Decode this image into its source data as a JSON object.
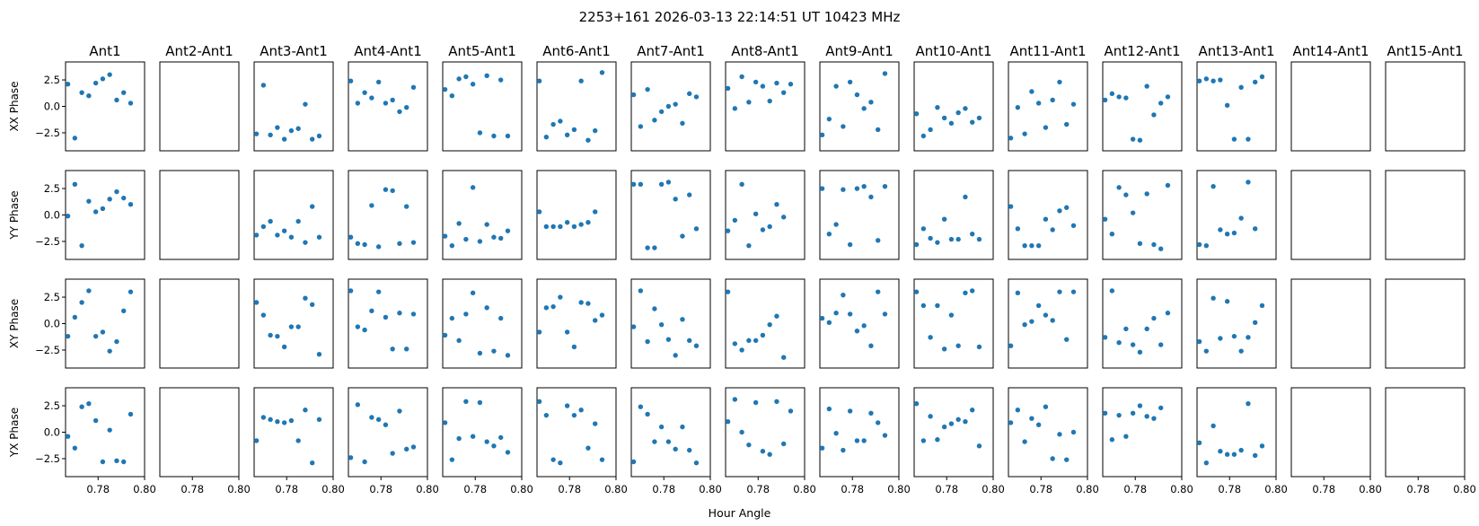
{
  "chart_data": {
    "type": "scatter",
    "title": "2253+161  2026-03-13 22:14:51 UT  10423 MHz",
    "xlabel": "Hour Angle",
    "columns": [
      "Ant1",
      "Ant2-Ant1",
      "Ant3-Ant1",
      "Ant4-Ant1",
      "Ant5-Ant1",
      "Ant6-Ant1",
      "Ant7-Ant1",
      "Ant8-Ant1",
      "Ant9-Ant1",
      "Ant10-Ant1",
      "Ant11-Ant1",
      "Ant12-Ant1",
      "Ant13-Ant1",
      "Ant14-Ant1",
      "Ant15-Ant1"
    ],
    "rows": [
      "XX Phase",
      "YY Phase",
      "XY Phase",
      "YX Phase"
    ],
    "xlim": [
      0.766,
      0.8
    ],
    "ylim": [
      -4.2,
      4.2
    ],
    "x_ticks": [
      0.78,
      0.8
    ],
    "x_tick_labels": [
      "0.78",
      "0.80"
    ],
    "y_ticks": [
      2.5,
      0.0,
      -2.5
    ],
    "y_tick_labels": [
      "2.5",
      "0.0",
      "−2.5"
    ],
    "marker_color": "#1f77b4",
    "x": [
      0.767,
      0.77,
      0.773,
      0.776,
      0.779,
      0.782,
      0.785,
      0.788,
      0.791,
      0.794,
      0.797
    ],
    "panels": [
      [
        [
          2.1,
          -3.0,
          1.3,
          1.0,
          2.2,
          2.6,
          3.0,
          0.6,
          1.3,
          0.3,
          null
        ],
        null,
        [
          -2.6,
          2.0,
          -2.7,
          -2.0,
          -3.1,
          -2.3,
          -2.1,
          0.2,
          -3.1,
          -2.8,
          null
        ],
        [
          2.4,
          0.3,
          1.3,
          0.8,
          2.3,
          0.3,
          0.6,
          -0.5,
          -0.1,
          1.8,
          null
        ],
        [
          1.6,
          1.0,
          2.6,
          2.8,
          2.1,
          -2.5,
          2.9,
          -2.8,
          2.5,
          -2.8,
          null
        ],
        [
          2.4,
          -2.9,
          -1.7,
          -1.4,
          -2.7,
          -2.2,
          2.4,
          -3.2,
          -2.3,
          3.2,
          null
        ],
        [
          1.1,
          -1.9,
          1.6,
          -1.3,
          -0.5,
          0.0,
          0.2,
          -1.6,
          1.2,
          0.9,
          null
        ],
        [
          1.7,
          -0.2,
          2.8,
          0.4,
          2.3,
          1.9,
          0.5,
          2.2,
          1.3,
          2.1,
          null
        ],
        [
          -2.7,
          -1.2,
          1.9,
          -1.9,
          2.3,
          1.1,
          -0.2,
          0.4,
          -2.2,
          3.1,
          null
        ],
        [
          -0.7,
          -2.8,
          -2.2,
          -0.1,
          -1.1,
          -1.6,
          -0.6,
          -0.2,
          -1.5,
          -1.1,
          null
        ],
        [
          -3.0,
          -0.1,
          -2.6,
          1.4,
          0.3,
          -2.0,
          0.6,
          2.3,
          -1.7,
          0.2,
          null
        ],
        [
          0.6,
          1.2,
          0.9,
          0.8,
          -3.1,
          -3.2,
          1.9,
          -0.8,
          0.3,
          0.9,
          null
        ],
        [
          2.4,
          2.6,
          2.4,
          2.5,
          0.1,
          -3.1,
          1.8,
          -3.1,
          2.3,
          2.8,
          null
        ],
        null,
        null
      ],
      [
        [
          -0.1,
          2.9,
          -2.9,
          1.3,
          0.3,
          0.6,
          1.5,
          2.2,
          1.6,
          1.0,
          null
        ],
        null,
        [
          -1.9,
          -1.1,
          -0.6,
          -1.9,
          -1.5,
          -2.1,
          -0.6,
          -2.6,
          0.8,
          -2.1,
          null
        ],
        [
          -2.1,
          -2.7,
          -2.8,
          0.9,
          -3.0,
          2.4,
          2.3,
          -2.7,
          0.8,
          -2.6,
          null
        ],
        [
          -2.0,
          -2.9,
          -0.8,
          -2.3,
          2.6,
          -2.5,
          -0.9,
          -2.1,
          -2.2,
          -1.5,
          null
        ],
        [
          0.3,
          -1.1,
          -1.1,
          -1.1,
          -0.7,
          -1.1,
          -0.9,
          -0.7,
          0.3,
          null,
          null
        ],
        [
          2.9,
          2.9,
          -3.1,
          -3.1,
          2.9,
          3.1,
          1.5,
          -2.0,
          1.9,
          -1.3,
          null
        ],
        [
          -1.5,
          -0.5,
          2.9,
          -2.9,
          0.1,
          -1.4,
          -1.1,
          1.0,
          -0.2,
          null,
          null
        ],
        [
          2.5,
          -1.8,
          -0.9,
          2.4,
          -2.8,
          2.5,
          2.7,
          1.7,
          -2.4,
          2.7,
          null
        ],
        [
          -2.8,
          -1.3,
          -2.2,
          -2.6,
          -0.4,
          -2.3,
          -2.3,
          1.7,
          -1.8,
          -2.3,
          null
        ],
        [
          0.8,
          -1.3,
          -2.9,
          -2.9,
          -2.9,
          -0.4,
          -1.4,
          0.4,
          0.7,
          -1.0,
          null
        ],
        [
          -0.4,
          -1.8,
          2.6,
          1.9,
          0.2,
          -2.7,
          2.0,
          -2.8,
          -3.2,
          2.8,
          null
        ],
        [
          -2.8,
          -2.9,
          2.7,
          -1.4,
          -1.8,
          -1.7,
          -0.3,
          3.1,
          -1.3,
          null,
          null
        ],
        null,
        null
      ],
      [
        [
          -1.2,
          0.6,
          2.0,
          3.1,
          -1.2,
          -0.8,
          -2.6,
          -1.7,
          1.2,
          3.0,
          null
        ],
        null,
        [
          2.0,
          0.8,
          -1.1,
          -1.2,
          -2.2,
          -0.3,
          -0.3,
          2.4,
          1.8,
          -2.9,
          null
        ],
        [
          3.1,
          -0.3,
          -0.6,
          1.2,
          3.0,
          0.6,
          -2.4,
          1.0,
          -2.4,
          0.9,
          null
        ],
        [
          -1.1,
          0.5,
          -1.6,
          0.9,
          2.9,
          -2.8,
          1.5,
          -2.6,
          0.5,
          -3.0,
          null
        ],
        [
          -0.8,
          1.5,
          1.6,
          2.5,
          -0.8,
          -2.2,
          2.0,
          1.9,
          0.3,
          0.8,
          null
        ],
        [
          -0.3,
          3.1,
          -1.7,
          1.4,
          -0.1,
          -1.5,
          -3.0,
          0.4,
          -1.6,
          -2.1,
          null
        ],
        [
          3.0,
          -1.9,
          -2.5,
          -1.6,
          -1.6,
          -1.1,
          -0.1,
          0.7,
          -3.2,
          null,
          null
        ],
        [
          0.5,
          0.1,
          1.0,
          2.7,
          0.9,
          -0.7,
          -0.2,
          -2.1,
          3.0,
          0.9,
          null
        ],
        [
          3.0,
          1.7,
          -1.3,
          1.7,
          -2.4,
          0.8,
          -2.1,
          2.9,
          3.1,
          -2.2,
          null
        ],
        [
          -2.1,
          2.9,
          -0.1,
          0.2,
          1.7,
          0.8,
          0.3,
          3.0,
          -1.5,
          3.0,
          null
        ],
        [
          -1.3,
          3.1,
          -1.8,
          -0.5,
          -2.0,
          -2.7,
          -0.5,
          0.5,
          -2.0,
          1.0,
          null
        ],
        [
          -1.7,
          -2.6,
          2.4,
          -1.4,
          2.1,
          -1.2,
          -2.6,
          -1.3,
          0.1,
          1.7,
          null
        ],
        null,
        null
      ],
      [
        [
          -0.4,
          -1.5,
          2.4,
          2.7,
          1.1,
          -2.8,
          0.2,
          -2.7,
          -2.8,
          1.7,
          null
        ],
        null,
        [
          -0.8,
          1.4,
          1.2,
          1.0,
          0.9,
          1.1,
          -0.8,
          2.1,
          -2.9,
          1.2,
          null
        ],
        [
          -2.4,
          2.6,
          -2.8,
          1.4,
          1.2,
          0.7,
          -2.0,
          2.0,
          -1.6,
          -1.4,
          null
        ],
        [
          0.9,
          -2.6,
          -0.6,
          2.9,
          -0.4,
          2.8,
          -0.9,
          -1.3,
          -0.5,
          -1.9,
          null
        ],
        [
          2.9,
          1.6,
          -2.6,
          -2.9,
          2.5,
          1.6,
          2.1,
          -1.5,
          0.8,
          -2.6,
          null
        ],
        [
          -2.8,
          2.4,
          1.7,
          -0.9,
          0.5,
          -0.9,
          -1.6,
          0.5,
          -1.7,
          -2.9,
          null
        ],
        [
          1.0,
          3.1,
          0.0,
          -1.2,
          2.8,
          -1.8,
          -2.1,
          2.9,
          -1.1,
          2.0,
          null
        ],
        [
          -1.5,
          2.2,
          -0.1,
          -1.7,
          2.0,
          -0.8,
          -0.8,
          1.8,
          0.9,
          -0.3,
          null
        ],
        [
          2.7,
          -0.8,
          1.5,
          -0.7,
          0.5,
          0.8,
          1.2,
          1.0,
          2.1,
          -1.3,
          null
        ],
        [
          0.9,
          2.1,
          -0.9,
          1.3,
          0.7,
          2.4,
          -2.5,
          -0.2,
          -2.6,
          0.0,
          null
        ],
        [
          1.8,
          -0.7,
          1.6,
          -0.4,
          1.8,
          2.5,
          1.5,
          1.3,
          2.3,
          null,
          null
        ],
        [
          -1.0,
          -2.9,
          0.6,
          -1.8,
          -2.1,
          -2.1,
          -1.7,
          2.7,
          -2.2,
          -1.3,
          null
        ],
        null,
        null
      ]
    ]
  }
}
